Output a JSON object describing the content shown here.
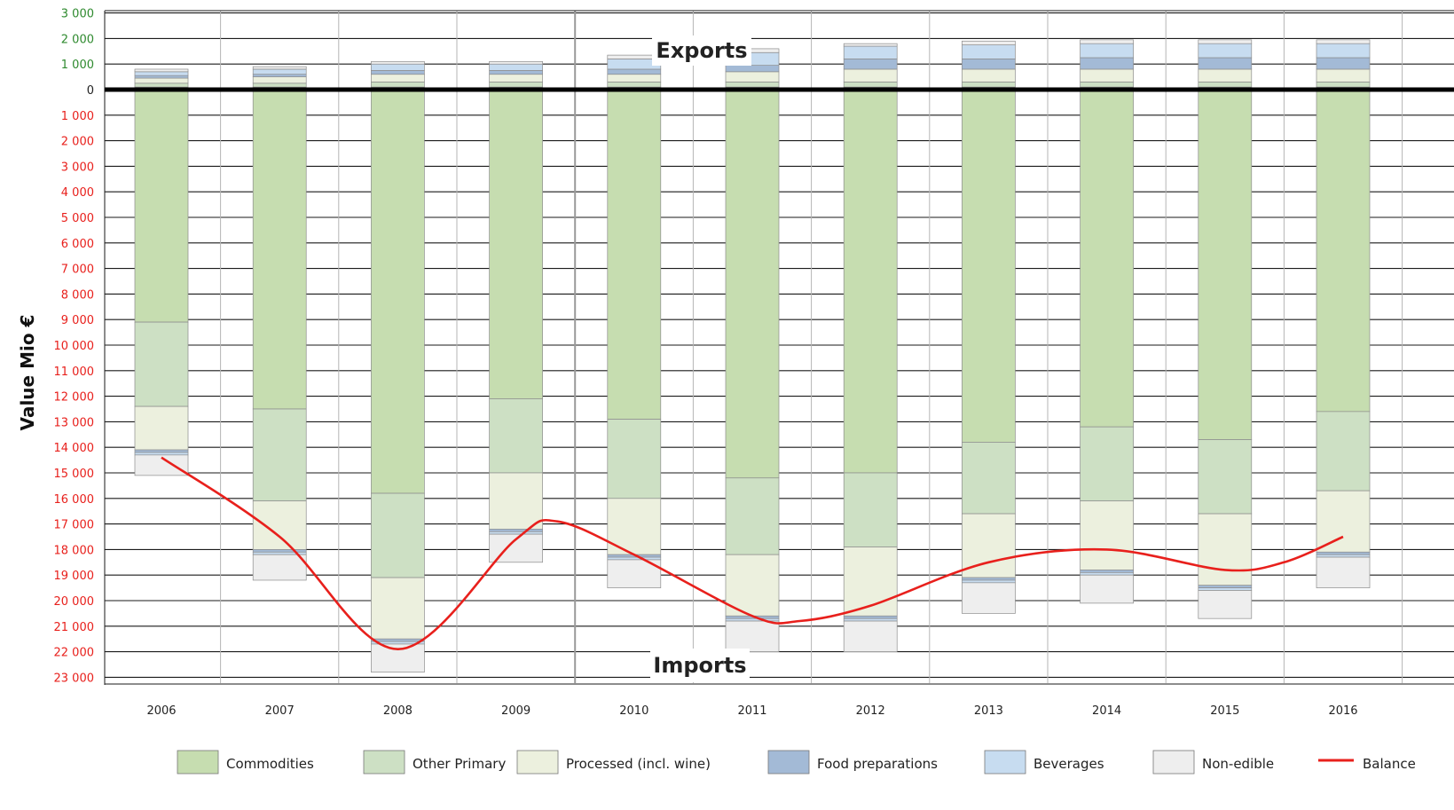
{
  "chart_data": {
    "type": "bar",
    "stacked": true,
    "ylabel": "Value Mio €",
    "categories": [
      "2006",
      "2007",
      "2008",
      "2009",
      "2010",
      "2011",
      "2012",
      "2013",
      "2014",
      "2015",
      "2016"
    ],
    "yticks": [
      {
        "value": 3000,
        "label": "3 000",
        "side": "export"
      },
      {
        "value": 2000,
        "label": "2 000",
        "side": "export"
      },
      {
        "value": 1000,
        "label": "1 000",
        "side": "export"
      },
      {
        "value": 0,
        "label": "0",
        "side": "zero"
      },
      {
        "value": -1000,
        "label": "1 000",
        "side": "import"
      },
      {
        "value": -2000,
        "label": "2 000",
        "side": "import"
      },
      {
        "value": -3000,
        "label": "3 000",
        "side": "import"
      },
      {
        "value": -4000,
        "label": "4 000",
        "side": "import"
      },
      {
        "value": -5000,
        "label": "5 000",
        "side": "import"
      },
      {
        "value": -6000,
        "label": "6 000",
        "side": "import"
      },
      {
        "value": -7000,
        "label": "7 000",
        "side": "import"
      },
      {
        "value": -8000,
        "label": "8 000",
        "side": "import"
      },
      {
        "value": -9000,
        "label": "9 000",
        "side": "import"
      },
      {
        "value": -10000,
        "label": "10 000",
        "side": "import"
      },
      {
        "value": -11000,
        "label": "11 000",
        "side": "import"
      },
      {
        "value": -12000,
        "label": "12 000",
        "side": "import"
      },
      {
        "value": -13000,
        "label": "13 000",
        "side": "import"
      },
      {
        "value": -14000,
        "label": "14 000",
        "side": "import"
      },
      {
        "value": -15000,
        "label": "15 000",
        "side": "import"
      },
      {
        "value": -16000,
        "label": "16 000",
        "side": "import"
      },
      {
        "value": -17000,
        "label": "17 000",
        "side": "import"
      },
      {
        "value": -18000,
        "label": "18 000",
        "side": "import"
      },
      {
        "value": -19000,
        "label": "19 000",
        "side": "import"
      },
      {
        "value": -20000,
        "label": "20 000",
        "side": "import"
      },
      {
        "value": -21000,
        "label": "21 000",
        "side": "import"
      },
      {
        "value": -22000,
        "label": "22 000",
        "side": "import"
      },
      {
        "value": -23000,
        "label": "23 000",
        "side": "import"
      }
    ],
    "ylim": [
      -23000,
      3000
    ],
    "annotations": {
      "exports": "Exports",
      "imports": "Imports"
    },
    "series": [
      {
        "name": "Commodities",
        "color": "#c6ddb0",
        "exports": [
          100,
          100,
          100,
          100,
          100,
          100,
          100,
          100,
          100,
          100,
          100
        ],
        "imports": [
          9100,
          12500,
          15800,
          12100,
          12900,
          15200,
          15000,
          13800,
          13200,
          13700,
          12600
        ]
      },
      {
        "name": "Other Primary",
        "color": "#cde0c4",
        "exports": [
          150,
          150,
          200,
          200,
          200,
          200,
          200,
          200,
          200,
          200,
          200
        ],
        "imports": [
          3300,
          3600,
          3300,
          2900,
          3100,
          3000,
          2900,
          2800,
          2900,
          2900,
          3100
        ]
      },
      {
        "name": "Processed (incl. wine)",
        "color": "#ecf0de",
        "exports": [
          200,
          250,
          300,
          300,
          300,
          400,
          500,
          500,
          500,
          500,
          500
        ],
        "imports": [
          1700,
          1900,
          2400,
          2200,
          2200,
          2400,
          2700,
          2500,
          2700,
          2800,
          2400
        ]
      },
      {
        "name": "Food preparations",
        "color": "#a3bad6",
        "exports": [
          100,
          100,
          150,
          150,
          200,
          250,
          400,
          400,
          450,
          450,
          450
        ],
        "imports": [
          100,
          100,
          100,
          100,
          100,
          100,
          100,
          100,
          100,
          100,
          100
        ]
      },
      {
        "name": "Beverages",
        "color": "#c7dcf0",
        "exports": [
          150,
          200,
          250,
          250,
          400,
          500,
          500,
          550,
          550,
          550,
          550
        ],
        "imports": [
          100,
          100,
          100,
          100,
          100,
          100,
          100,
          100,
          100,
          100,
          100
        ]
      },
      {
        "name": "Non-edible",
        "color": "#eeeeee",
        "exports": [
          100,
          100,
          100,
          100,
          150,
          150,
          100,
          150,
          150,
          150,
          150
        ],
        "imports": [
          800,
          1000,
          1100,
          1100,
          1100,
          1200,
          1200,
          1200,
          1100,
          1100,
          1200
        ]
      }
    ],
    "balance": {
      "name": "Balance",
      "color": "#e8201c",
      "x": [
        2006,
        2007,
        2008,
        2009,
        2009.35,
        2010,
        2011,
        2011.4,
        2012,
        2013,
        2014,
        2015,
        2015.5,
        2016
      ],
      "y": [
        -14400,
        -17500,
        -21900,
        -17600,
        -16900,
        -18200,
        -20600,
        -20800,
        -20200,
        -18500,
        -18000,
        -18800,
        -18500,
        -17500
      ]
    }
  }
}
